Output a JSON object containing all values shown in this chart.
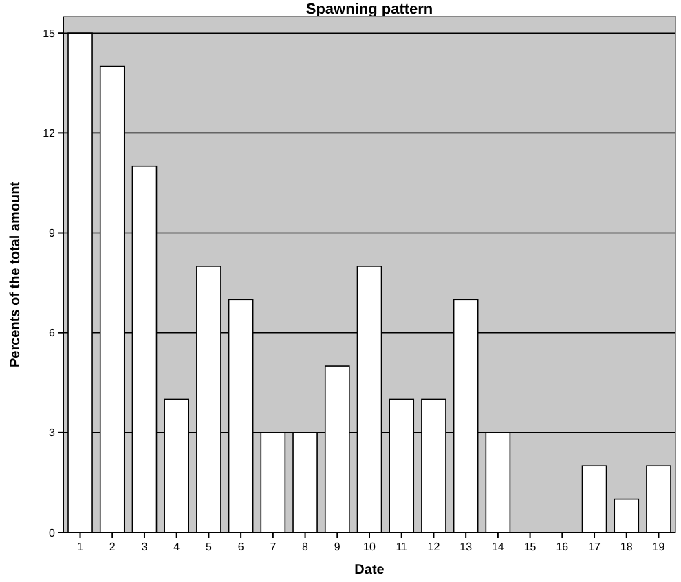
{
  "chart_data": {
    "type": "bar",
    "title": "Spawning pattern",
    "xlabel": "Date",
    "ylabel": "Percents of the total amount",
    "categories": [
      "1",
      "2",
      "3",
      "4",
      "5",
      "6",
      "7",
      "8",
      "9",
      "10",
      "11",
      "12",
      "13",
      "14",
      "15",
      "16",
      "17",
      "18",
      "19"
    ],
    "values": [
      15,
      14,
      11,
      4,
      8,
      7,
      3,
      3,
      5,
      8,
      4,
      4,
      7,
      3,
      0,
      0,
      2,
      1,
      2
    ],
    "color": "#ffffff",
    "ylim": [
      0,
      15.5
    ],
    "yticks": [
      0,
      3,
      6,
      9,
      12,
      15
    ],
    "grid": "y"
  }
}
